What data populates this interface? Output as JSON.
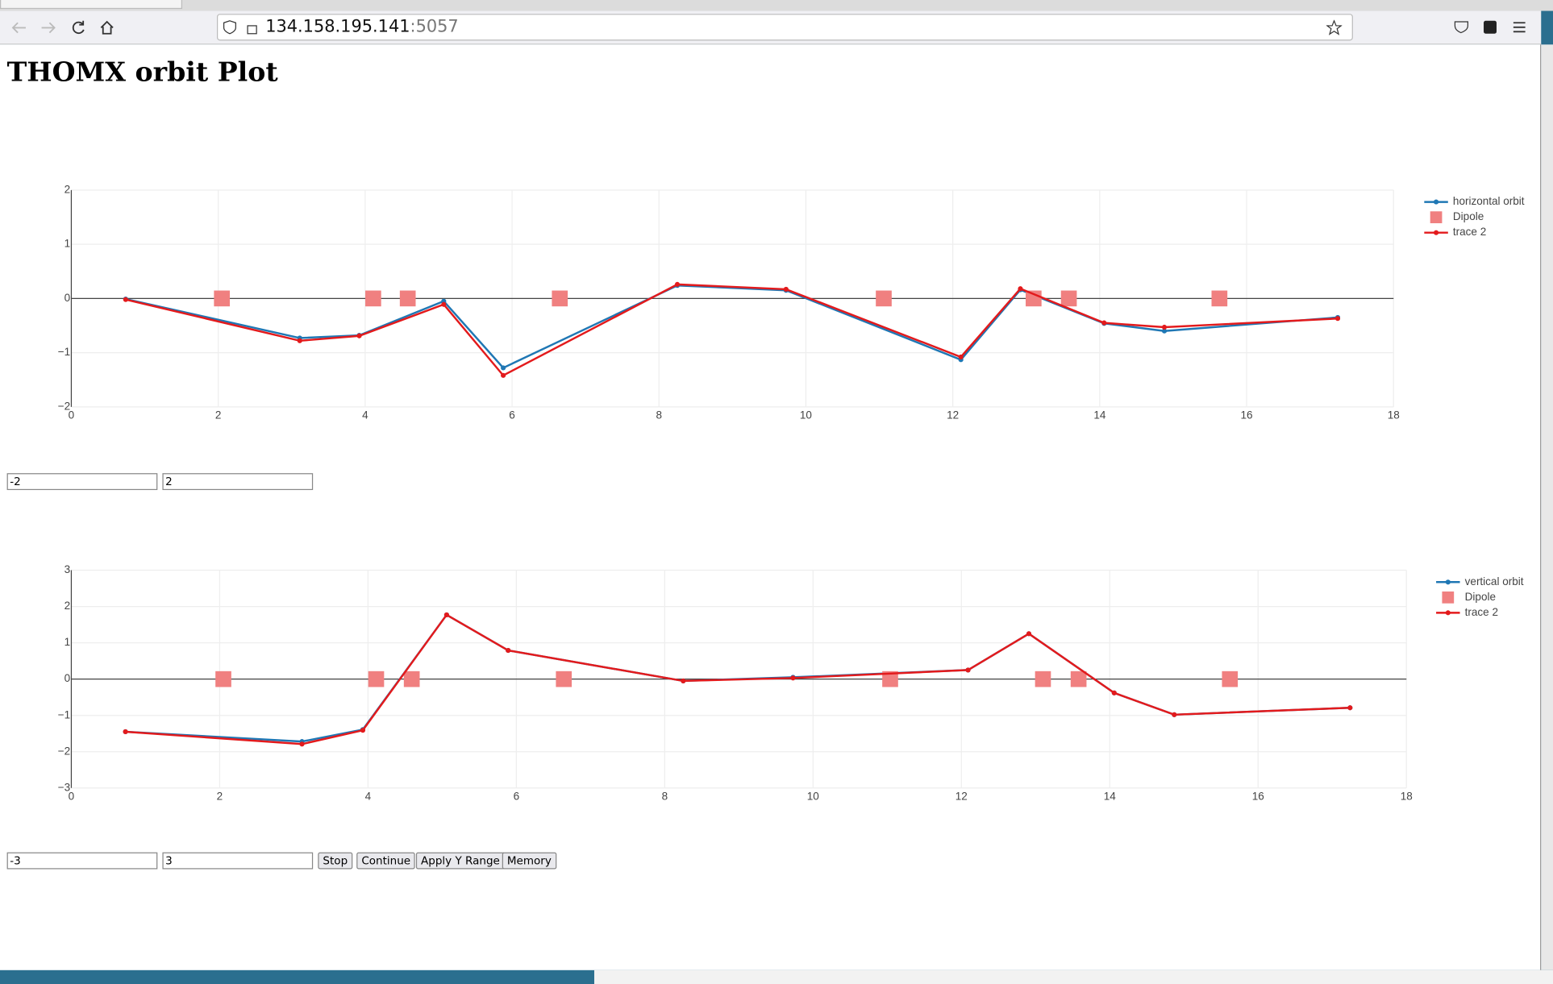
{
  "browser": {
    "url_host": "134.158.195.141",
    "url_port": ":5057"
  },
  "page": {
    "title": "THOMX orbit Plot"
  },
  "chart_data": [
    {
      "type": "line",
      "grid": true,
      "zeroline": true,
      "legend": "top-right",
      "xlim": [
        0,
        18
      ],
      "xticks": [
        0,
        2,
        4,
        6,
        8,
        10,
        12,
        14,
        16,
        18
      ],
      "ylim": [
        -2,
        2
      ],
      "yticks": [
        {
          "value": -2,
          "label": "−2"
        },
        {
          "value": -1,
          "label": "−1"
        },
        0,
        1,
        2
      ],
      "series": [
        {
          "name": "horizontal orbit",
          "color": "#1f77b4",
          "mode": "lines+markers",
          "x": [
            0.74,
            3.11,
            3.92,
            5.07,
            5.88,
            8.25,
            9.73,
            12.11,
            12.92,
            14.06,
            14.88,
            17.24
          ],
          "values": [
            -0.01,
            -0.73,
            -0.68,
            -0.05,
            -1.28,
            0.24,
            0.15,
            -1.13,
            0.16,
            -0.46,
            -0.6,
            -0.35
          ]
        },
        {
          "name": "Dipole",
          "color": "#f08080",
          "mode": "markers",
          "x": [
            2.05,
            4.11,
            4.58,
            6.65,
            11.06,
            13.1,
            13.58,
            15.63
          ],
          "values": [
            0,
            0,
            0,
            0,
            0,
            0,
            0,
            0
          ]
        },
        {
          "name": "trace 2",
          "color": "#e31a1c",
          "mode": "lines+markers",
          "x": [
            0.74,
            3.11,
            3.92,
            5.07,
            5.88,
            8.25,
            9.73,
            12.11,
            12.92,
            14.06,
            14.88,
            17.24
          ],
          "values": [
            -0.02,
            -0.78,
            -0.69,
            -0.11,
            -1.42,
            0.26,
            0.17,
            -1.08,
            0.18,
            -0.45,
            -0.53,
            -0.37
          ]
        }
      ]
    },
    {
      "type": "line",
      "grid": true,
      "zeroline": true,
      "legend": "top-right",
      "xlim": [
        0,
        18
      ],
      "xticks": [
        0,
        2,
        4,
        6,
        8,
        10,
        12,
        14,
        16,
        18
      ],
      "ylim": [
        -3,
        3
      ],
      "yticks": [
        {
          "value": -3,
          "label": "−3"
        },
        {
          "value": -2,
          "label": "−2"
        },
        {
          "value": -1,
          "label": "−1"
        },
        0,
        1,
        2,
        3
      ],
      "series": [
        {
          "name": "vertical orbit",
          "color": "#1f77b4",
          "mode": "lines+markers",
          "x": [
            0.73,
            3.11,
            3.93,
            5.06,
            5.89,
            8.25,
            9.73,
            12.09,
            12.91,
            14.06,
            14.87,
            17.24
          ],
          "values": [
            -1.45,
            -1.72,
            -1.39,
            1.77,
            0.79,
            -0.05,
            0.05,
            0.25,
            1.25,
            -0.38,
            -0.98,
            -0.79
          ]
        },
        {
          "name": "Dipole",
          "color": "#f08080",
          "mode": "markers",
          "x": [
            2.05,
            4.11,
            4.59,
            6.64,
            11.04,
            13.1,
            13.58,
            15.62
          ],
          "values": [
            0,
            0,
            0,
            0,
            0,
            0,
            0,
            0
          ]
        },
        {
          "name": "trace 2",
          "color": "#e31a1c",
          "mode": "lines+markers",
          "x": [
            0.73,
            3.11,
            3.93,
            5.06,
            5.89,
            8.25,
            9.73,
            12.09,
            12.91,
            14.06,
            14.87,
            17.24
          ],
          "values": [
            -1.45,
            -1.79,
            -1.41,
            1.77,
            0.79,
            -0.05,
            0.03,
            0.25,
            1.25,
            -0.38,
            -0.98,
            -0.79
          ]
        }
      ]
    }
  ],
  "controls": {
    "range_1": [
      -2,
      2
    ],
    "range_2": [
      -3,
      3
    ],
    "buttons": [
      "Stop",
      "Continue",
      "Apply Y Range",
      "Memory"
    ]
  }
}
